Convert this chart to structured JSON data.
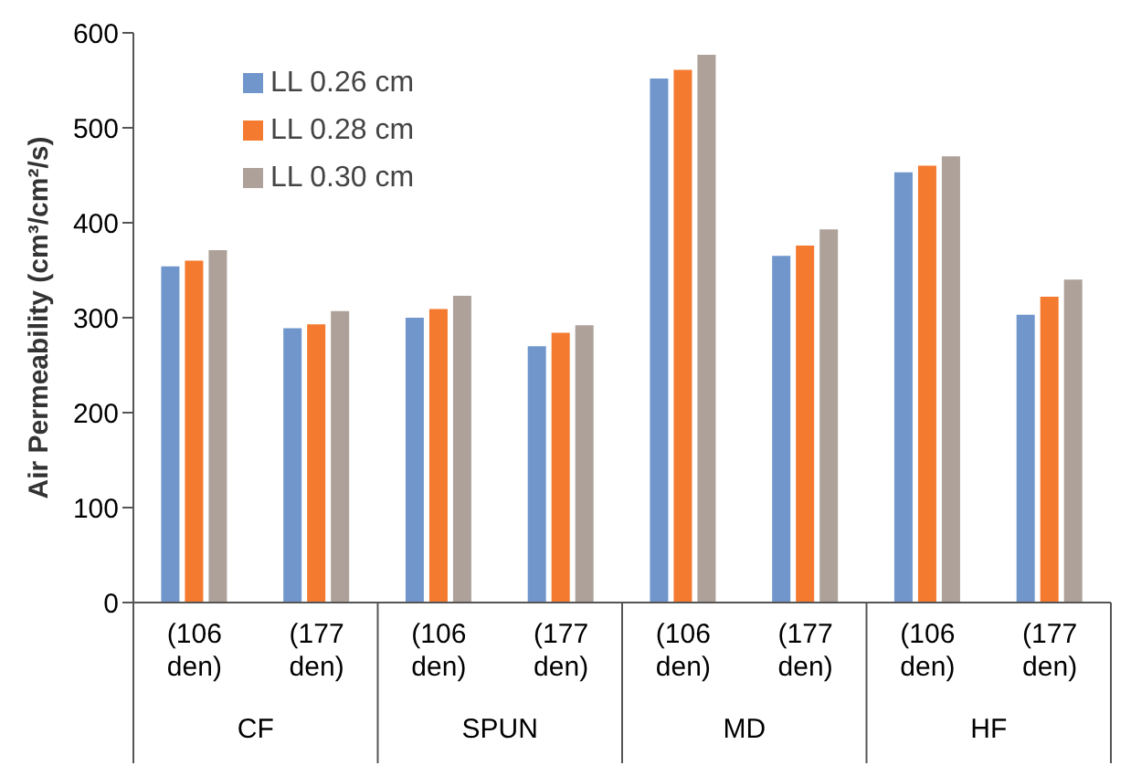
{
  "chart_data": {
    "type": "bar",
    "ylabel": "Air Permeability (cm³/cm²/s)",
    "categories": [
      "(106 den)",
      "(177 den)",
      "(106 den)",
      "(177 den)",
      "(106 den)",
      "(177 den)",
      "(106 den)",
      "(177 den)"
    ],
    "annotations": [
      "CF",
      "SPUN",
      "MD",
      "HF"
    ],
    "series": [
      {
        "name": "LL 0.26 cm",
        "color": "#7096cc",
        "values": [
          355,
          290,
          301,
          271,
          553,
          366,
          454,
          304
        ]
      },
      {
        "name": "LL 0.28 cm",
        "color": "#f47a30",
        "values": [
          361,
          294,
          310,
          285,
          562,
          377,
          461,
          323
        ]
      },
      {
        "name": "LL 0.30 cm",
        "color": "#ada199",
        "values": [
          372,
          308,
          324,
          293,
          578,
          394,
          471,
          341
        ]
      }
    ],
    "ylim": [
      0,
      600
    ],
    "yticks": [
      0,
      100,
      200,
      300,
      400,
      500,
      600
    ],
    "grid": false,
    "legend": "top left"
  }
}
